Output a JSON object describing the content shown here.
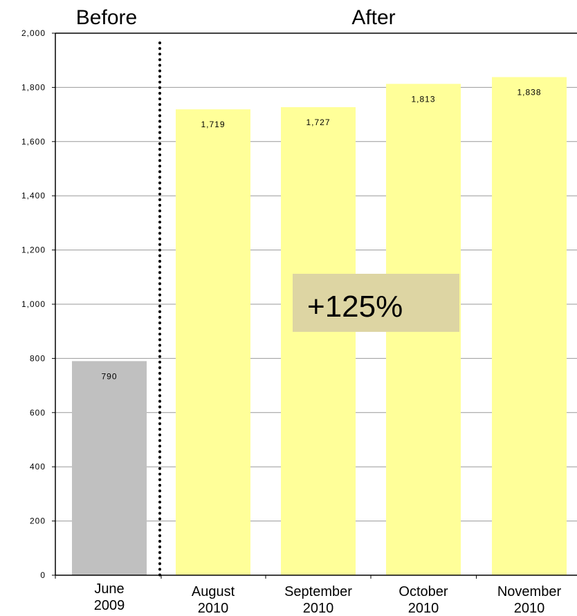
{
  "chart_data": {
    "type": "bar",
    "categories": [
      [
        "June",
        "2009"
      ],
      [
        "August",
        "2010"
      ],
      [
        "September",
        "2010"
      ],
      [
        "October",
        "2010"
      ],
      [
        "November",
        "2010"
      ]
    ],
    "values": [
      790,
      1719,
      1727,
      1813,
      1838
    ],
    "value_labels": [
      "790",
      "1,719",
      "1,727",
      "1,813",
      "1,838"
    ],
    "bar_colors": [
      "#c0c0c0",
      "#ffff99",
      "#ffff99",
      "#ffff99",
      "#ffff99"
    ],
    "ylim": [
      0,
      2000
    ],
    "yticks": [
      0,
      200,
      400,
      600,
      800,
      1000,
      1200,
      1400,
      1600,
      1800,
      2000
    ],
    "ytick_labels": [
      "0",
      "200",
      "400",
      "600",
      "800",
      "1,000",
      "1,200",
      "1,400",
      "1,600",
      "1,800",
      "2,000"
    ],
    "grid": true,
    "grid_color": "#999999",
    "group_labels": {
      "before": "Before",
      "after": "After"
    },
    "callout": {
      "text": "+125%",
      "background": "#ddd5a3"
    },
    "divider": "dotted vertical line between June 2009 and August 2010"
  }
}
